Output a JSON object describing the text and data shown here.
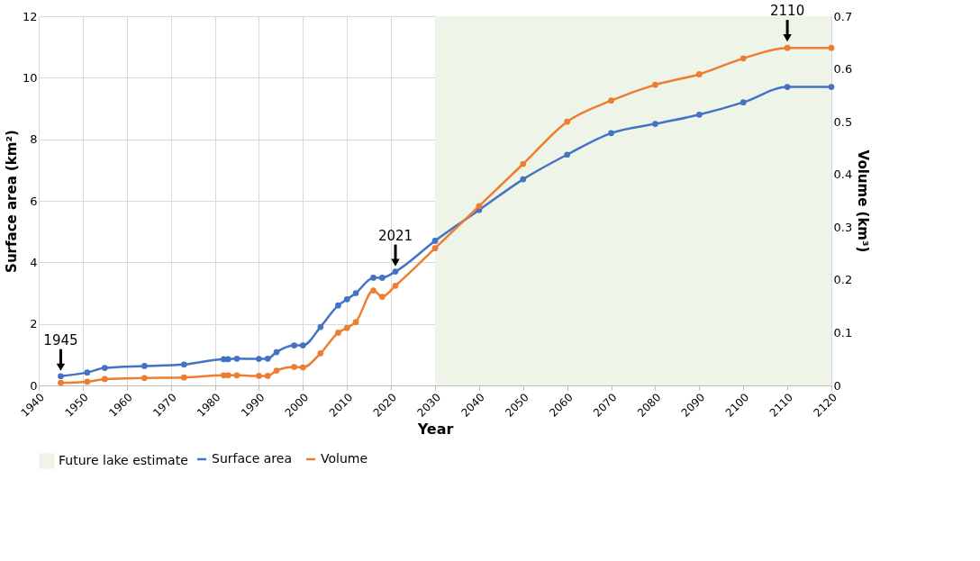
{
  "chart_data": {
    "type": "line",
    "xlabel": "Year",
    "ylabel": "Surface area (km²)",
    "y2label": "Volume (km³)",
    "x": [
      1945,
      1951,
      1955,
      1964,
      1973,
      1982,
      1983,
      1985,
      1990,
      1992,
      1994,
      1998,
      2000,
      2004,
      2008,
      2010,
      2012,
      2016,
      2018,
      2021,
      2030,
      2040,
      2050,
      2060,
      2070,
      2080,
      2090,
      2100,
      2110,
      2120
    ],
    "series": [
      {
        "name": "Surface area",
        "color": "#4472c4",
        "values": [
          0.3,
          0.42,
          0.57,
          0.63,
          0.68,
          0.85,
          0.85,
          0.87,
          0.86,
          0.87,
          1.08,
          1.3,
          1.3,
          1.9,
          2.6,
          2.8,
          3.0,
          3.5,
          3.5,
          3.7,
          4.7,
          5.7,
          6.7,
          7.5,
          8.2,
          8.5,
          8.8,
          9.2,
          9.7,
          9.7
        ]
      },
      {
        "name": "Volume",
        "color": "#ed7d31",
        "axis": "y2",
        "values": [
          0.005,
          0.007,
          0.012,
          0.014,
          0.015,
          0.019,
          0.019,
          0.019,
          0.018,
          0.018,
          0.028,
          0.035,
          0.034,
          0.061,
          0.1,
          0.109,
          0.12,
          0.18,
          0.168,
          0.189,
          0.26,
          0.34,
          0.42,
          0.5,
          0.54,
          0.57,
          0.59,
          0.62,
          0.64,
          0.64
        ]
      }
    ],
    "xlim": [
      1940,
      2120
    ],
    "xticks": [
      1940,
      1950,
      1960,
      1970,
      1980,
      1990,
      2000,
      2010,
      2020,
      2030,
      2040,
      2050,
      2060,
      2070,
      2080,
      2090,
      2100,
      2110,
      2120
    ],
    "ylim": [
      0,
      12
    ],
    "yticks": [
      0,
      2,
      4,
      6,
      8,
      10,
      12
    ],
    "y2lim": [
      0,
      0.7
    ],
    "y2ticks": [
      {
        "value": 0,
        "label": "0"
      },
      0.1,
      0.2,
      0.3,
      0.4,
      0.5,
      0.6,
      0.7
    ],
    "bands": [
      {
        "axis": "x",
        "from": 2030,
        "to": 2120,
        "label": "Future lake estimate",
        "color": "#eef4e8"
      }
    ],
    "annotations": [
      {
        "text": "1945",
        "x": 1945,
        "y": 0.3
      },
      {
        "text": "2021",
        "x": 2021,
        "y": 3.7
      },
      {
        "text": "2110",
        "x": 2110,
        "y": 11
      }
    ],
    "grid": true,
    "legend": "bottom",
    "marker": "circle",
    "line_style": "solid"
  }
}
